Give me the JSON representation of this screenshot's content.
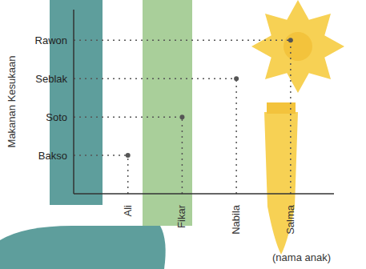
{
  "chart_data": {
    "type": "scatter",
    "x_label": "(nama anak)",
    "y_label": "Makanan Kesukaan",
    "categories": [
      "Ali",
      "Fikar",
      "Nabila",
      "Salma"
    ],
    "y_categories": [
      "Bakso",
      "Soto",
      "Seblak",
      "Rawon"
    ],
    "values": [
      "Bakso",
      "Soto",
      "Seblak",
      "Rawon"
    ],
    "color": "#555555",
    "marker": "circle",
    "line_style": "dotted",
    "grid": false
  }
}
